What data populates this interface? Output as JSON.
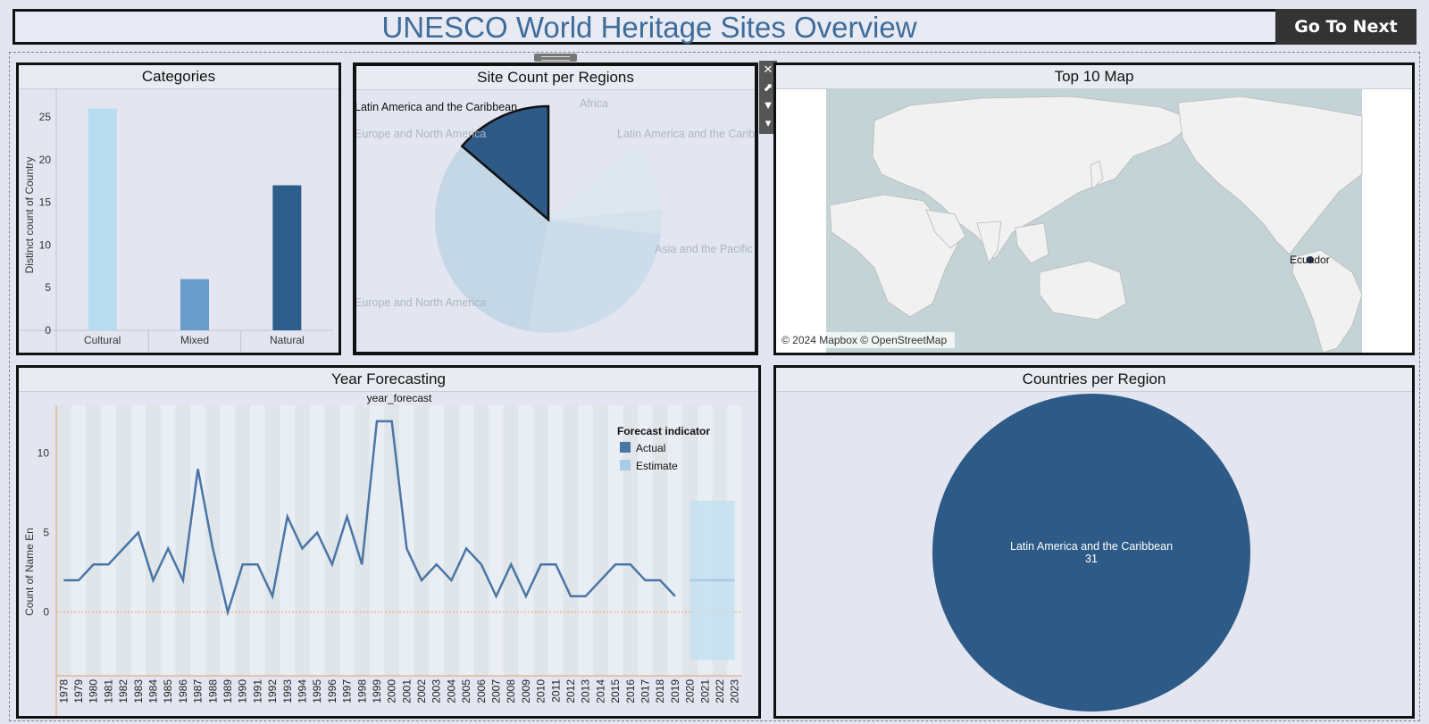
{
  "header": {
    "title": "UNESCO World Heritage Sites Overview",
    "next_button": "Go To Next"
  },
  "toolbar": {
    "close": "✕",
    "open": "⬈",
    "filter": "▼",
    "more": "▾"
  },
  "panels": {
    "categories": "Categories",
    "site_count": "Site Count per Regions",
    "map": "Top 10 Map",
    "forecast": "Year Forecasting",
    "countries": "Countries per Region"
  },
  "chart_data": [
    {
      "type": "bar",
      "title": "Categories",
      "ylabel": "Distinct count of Country",
      "categories": [
        "Cultural",
        "Mixed",
        "Natural"
      ],
      "values": [
        26,
        6,
        17
      ],
      "colors": [
        "#b9ddf0",
        "#6a9cc9",
        "#2d5d8a"
      ],
      "yticks": [
        0,
        5,
        10,
        15,
        20,
        25
      ],
      "ylim": [
        0,
        27
      ]
    },
    {
      "type": "pie",
      "title": "Site Count per Regions",
      "slices": [
        {
          "label": "Latin America and the Caribbean",
          "value": 31,
          "color": "#2d5a86",
          "highlighted": true
        },
        {
          "label": "Africa",
          "value": 22,
          "color": "#dde7f0"
        },
        {
          "label": "Latin America and the Caribbean",
          "value": 8,
          "color": "#d5e2ec"
        },
        {
          "label": "Asia and the Pacific",
          "value": 58,
          "color": "#cddcea"
        },
        {
          "label": "Europe and North America",
          "value": 88,
          "color": "#c4d7e6"
        },
        {
          "label": "Europe and North America",
          "value": 18,
          "color": "#c9dae8"
        }
      ]
    },
    {
      "type": "line",
      "title": "Year Forecasting",
      "header": "year_forecast",
      "ylabel": "Count of Name En",
      "legend": {
        "title": "Forecast indicator",
        "items": [
          {
            "name": "Actual",
            "color": "#4a76a5"
          },
          {
            "name": "Estimate",
            "color": "#a8cce5"
          }
        ]
      },
      "x": [
        1978,
        1979,
        1980,
        1981,
        1982,
        1983,
        1984,
        1985,
        1986,
        1987,
        1988,
        1989,
        1990,
        1991,
        1992,
        1993,
        1994,
        1995,
        1996,
        1997,
        1998,
        1999,
        2000,
        2001,
        2002,
        2003,
        2004,
        2005,
        2006,
        2007,
        2008,
        2009,
        2010,
        2011,
        2012,
        2013,
        2014,
        2015,
        2016,
        2017,
        2018,
        2019,
        2020,
        2021,
        2022,
        2023
      ],
      "actual": [
        2,
        2,
        3,
        3,
        4,
        5,
        2,
        4,
        2,
        9,
        4,
        0,
        3,
        3,
        1,
        6,
        4,
        5,
        3,
        6,
        3,
        12,
        12,
        4,
        2,
        3,
        2,
        4,
        3,
        1,
        3,
        1,
        3,
        3,
        1,
        1,
        2,
        3,
        3,
        2,
        2,
        1
      ],
      "estimate": {
        "from": 2020,
        "to": 2023,
        "value": 2,
        "low": -3,
        "high": 7
      },
      "yticks": [
        0,
        5,
        10
      ],
      "ylim": [
        -4,
        13
      ]
    },
    {
      "type": "pie",
      "title": "Countries per Region",
      "slices": [
        {
          "label": "Latin America and the Caribbean",
          "value": 31,
          "color": "#2d5a86"
        }
      ]
    }
  ],
  "map": {
    "marker_label": "Ecuador",
    "attribution": "© 2024 Mapbox © OpenStreetMap"
  }
}
